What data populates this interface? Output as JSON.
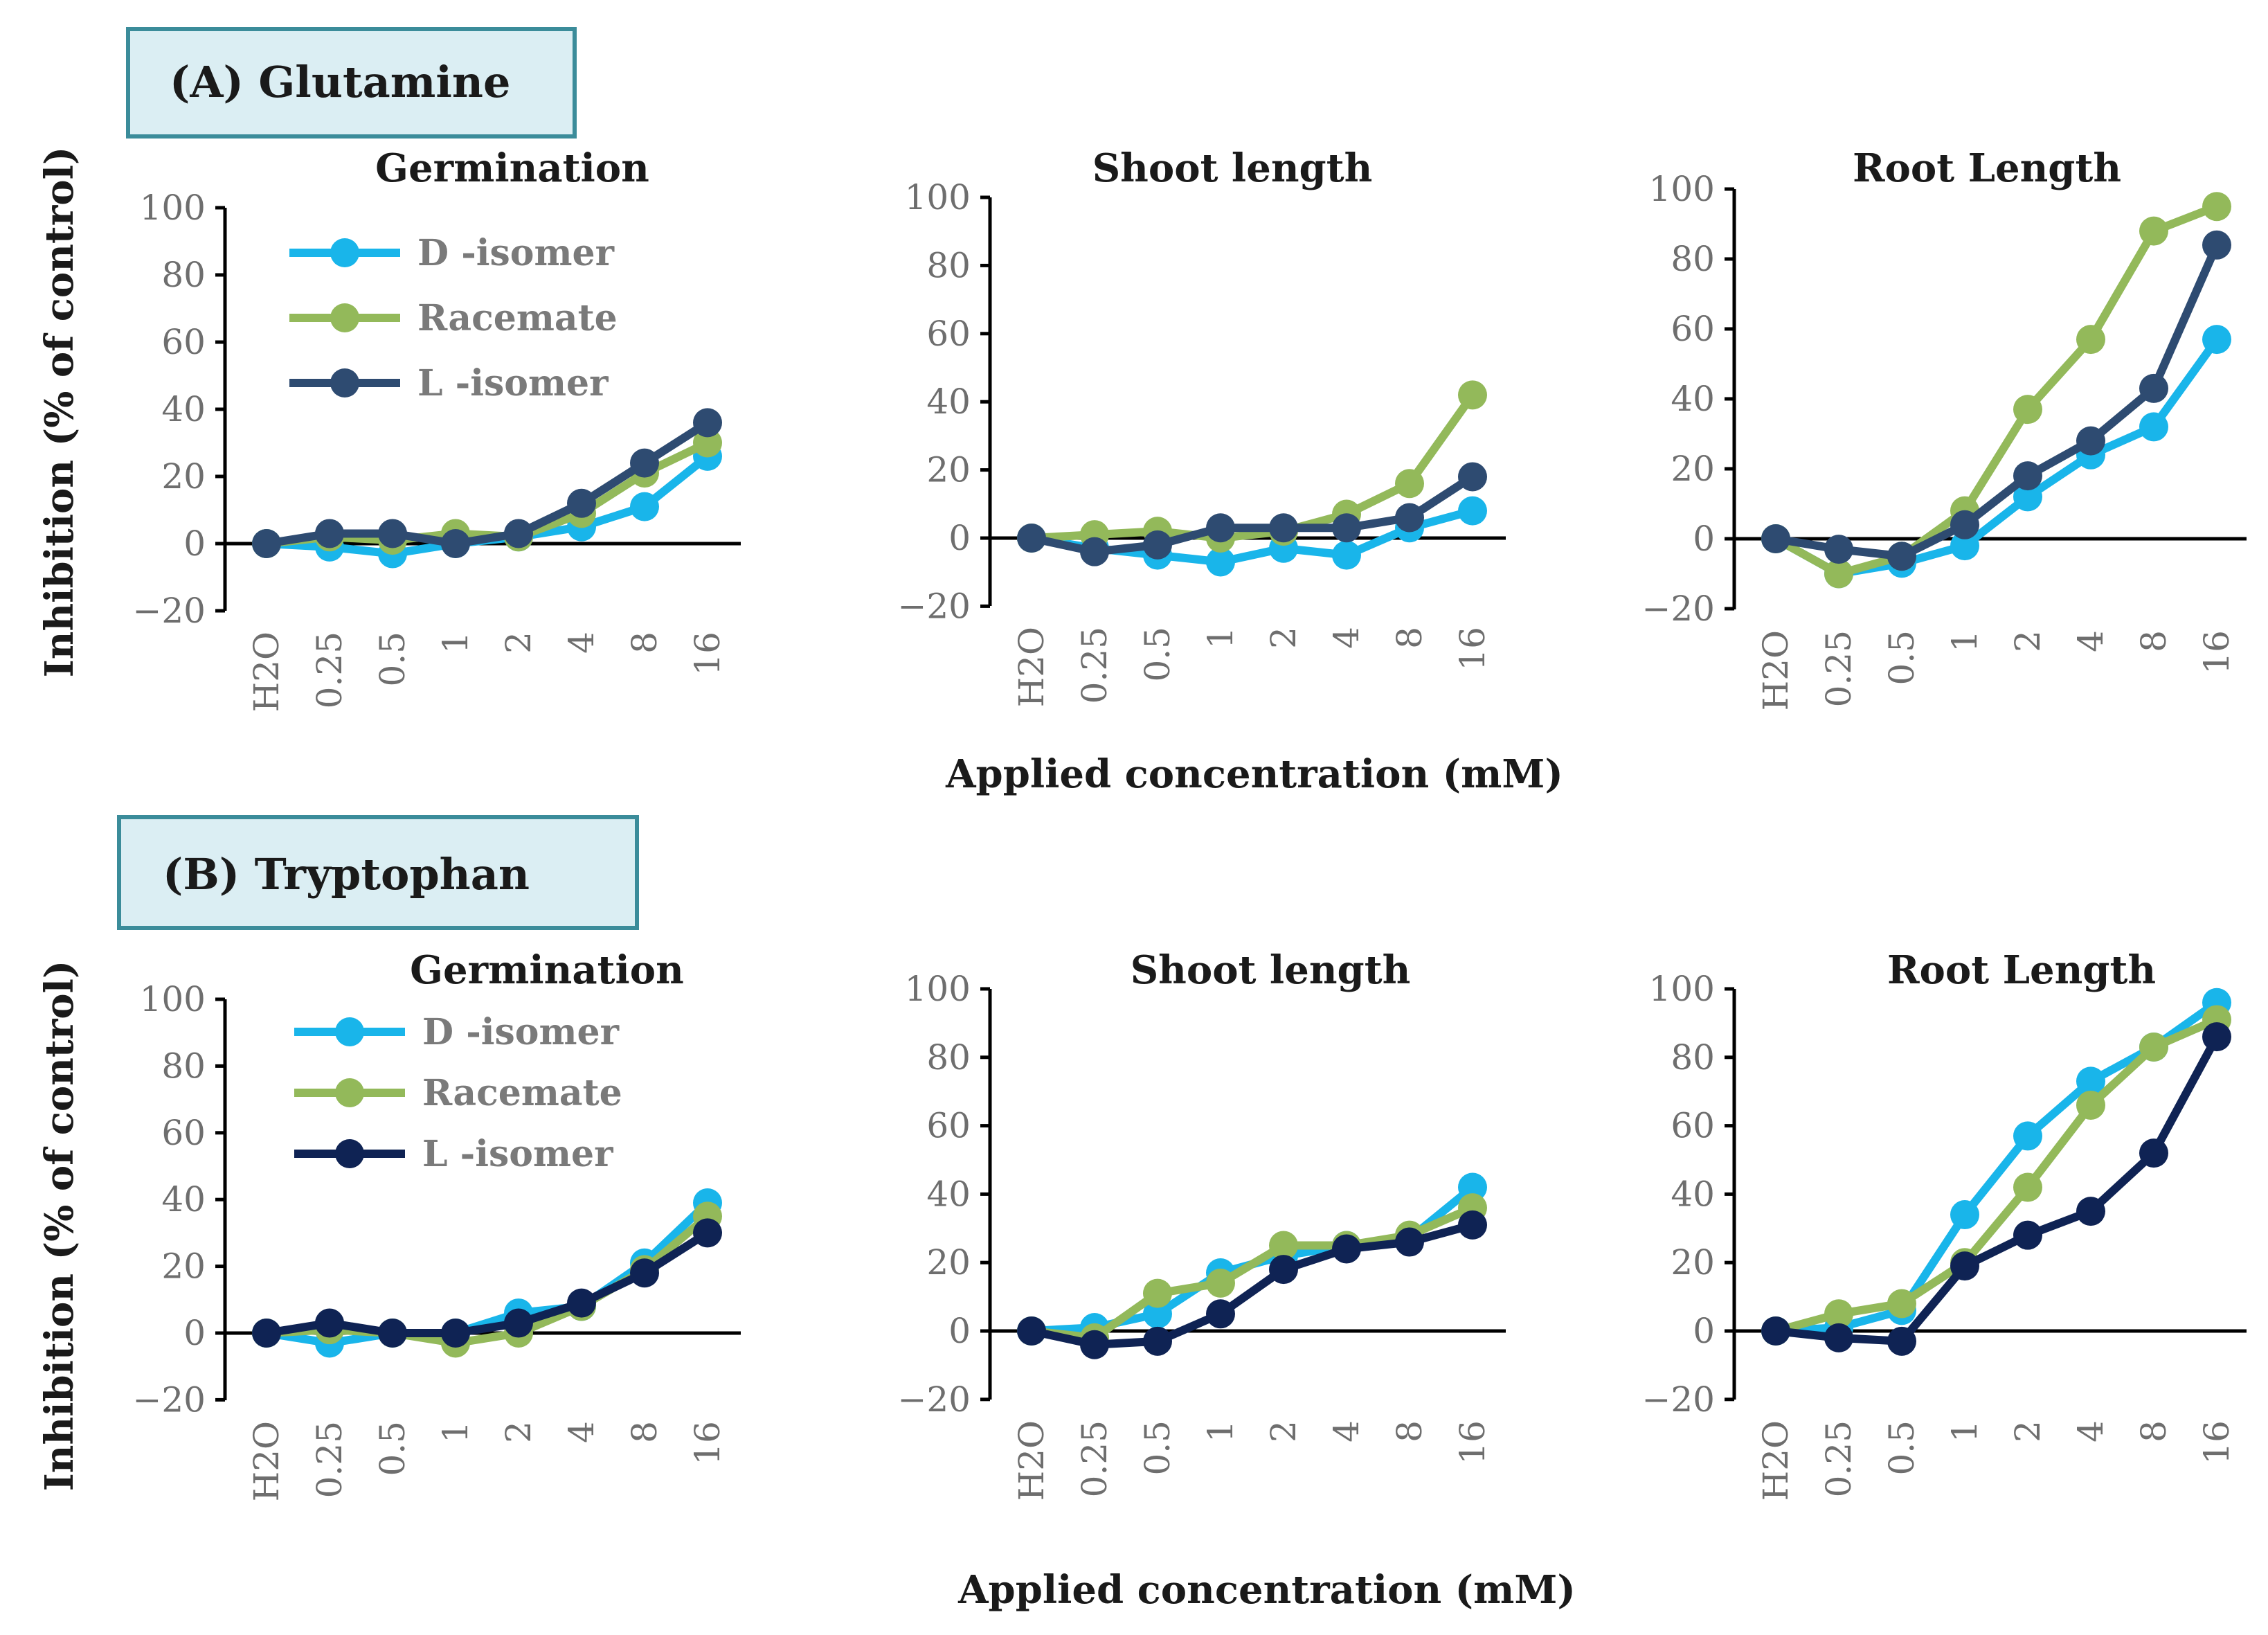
{
  "figure": {
    "panel_a_label": "(A) Glutamine",
    "panel_b_label": "(B) Tryptophan",
    "ylabel": "Inhibition (% of control)",
    "xlabel": "Applied concentration (mM)"
  },
  "colors": {
    "d_isomer": "#19b5ea",
    "racemate": "#93b95a",
    "l_isomer_a": "#2e4b71",
    "l_isomer_b": "#0f2354",
    "box_fill": "#dbeef3",
    "box_stroke": "#3b8c9a"
  },
  "chart_data": [
    {
      "type": "line",
      "panel": "A",
      "title": "Germination",
      "categories": [
        "H2O",
        "0.25",
        "0.5",
        "1",
        "2",
        "4",
        "8",
        "16"
      ],
      "yticks": [
        "100",
        "80",
        "60",
        "40",
        "20",
        "0",
        "−20"
      ],
      "ylim": [
        -20,
        100
      ],
      "legend": "top-left",
      "legend_labels": [
        "D -isomer",
        "Racemate",
        "L -isomer"
      ],
      "series": [
        {
          "name": "D -isomer",
          "color_key": "d_isomer",
          "values": [
            0,
            -1,
            -3,
            0,
            2,
            5,
            11,
            26
          ]
        },
        {
          "name": "Racemate",
          "color_key": "racemate",
          "values": [
            0,
            2,
            1,
            3,
            2,
            9,
            21,
            30
          ]
        },
        {
          "name": "L -isomer",
          "color_key": "l_isomer_a",
          "values": [
            0,
            3,
            3,
            0,
            3,
            12,
            24,
            36
          ]
        }
      ]
    },
    {
      "type": "line",
      "panel": "A",
      "title": "Shoot length",
      "categories": [
        "H2O",
        "0.25",
        "0.5",
        "1",
        "2",
        "4",
        "8",
        "16"
      ],
      "yticks": [
        "100",
        "80",
        "60",
        "40",
        "20",
        "0",
        "−20"
      ],
      "ylim": [
        -20,
        100
      ],
      "series": [
        {
          "name": "D -isomer",
          "color_key": "d_isomer",
          "values": [
            0,
            -3,
            -5,
            -7,
            -3,
            -5,
            3,
            8
          ]
        },
        {
          "name": "Racemate",
          "color_key": "racemate",
          "values": [
            0,
            1,
            2,
            0,
            2,
            7,
            16,
            42
          ]
        },
        {
          "name": "L -isomer",
          "color_key": "l_isomer_a",
          "values": [
            0,
            -4,
            -2,
            3,
            3,
            3,
            6,
            18
          ]
        }
      ]
    },
    {
      "type": "line",
      "panel": "A",
      "title": "Root Length",
      "categories": [
        "H2O",
        "0.25",
        "0.5",
        "1",
        "2",
        "4",
        "8",
        "16"
      ],
      "yticks": [
        "100",
        "80",
        "60",
        "40",
        "20",
        "0",
        "−20"
      ],
      "ylim": [
        -20,
        100
      ],
      "series": [
        {
          "name": "D -isomer",
          "color_key": "d_isomer",
          "values": [
            0,
            -10,
            -7,
            -2,
            12,
            24,
            32,
            57
          ]
        },
        {
          "name": "Racemate",
          "color_key": "racemate",
          "values": [
            0,
            -10,
            -5,
            8,
            37,
            57,
            88,
            95
          ]
        },
        {
          "name": "L -isomer",
          "color_key": "l_isomer_a",
          "values": [
            0,
            -3,
            -5,
            4,
            18,
            28,
            43,
            84
          ]
        }
      ]
    },
    {
      "type": "line",
      "panel": "B",
      "title": "Germination",
      "categories": [
        "H2O",
        "0.25",
        "0.5",
        "1",
        "2",
        "4",
        "8",
        "16"
      ],
      "yticks": [
        "100",
        "80",
        "60",
        "40",
        "20",
        "0",
        "−20"
      ],
      "ylim": [
        -20,
        100
      ],
      "legend": "top-left",
      "legend_labels": [
        "D -isomer",
        "Racemate",
        "L -isomer"
      ],
      "series": [
        {
          "name": "D -isomer",
          "color_key": "d_isomer",
          "values": [
            0,
            -3,
            0,
            0,
            6,
            8,
            21,
            39
          ]
        },
        {
          "name": "Racemate",
          "color_key": "racemate",
          "values": [
            0,
            1,
            0,
            -3,
            0,
            8,
            19,
            35
          ]
        },
        {
          "name": "L -isomer",
          "color_key": "l_isomer_b",
          "values": [
            0,
            3,
            0,
            0,
            3,
            9,
            18,
            30
          ]
        }
      ]
    },
    {
      "type": "line",
      "panel": "B",
      "title": "Shoot length",
      "categories": [
        "H2O",
        "0.25",
        "0.5",
        "1",
        "2",
        "4",
        "8",
        "16"
      ],
      "yticks": [
        "100",
        "80",
        "60",
        "40",
        "20",
        "0",
        "−20"
      ],
      "ylim": [
        -20,
        100
      ],
      "series": [
        {
          "name": "D -isomer",
          "color_key": "d_isomer",
          "values": [
            0,
            1,
            5,
            17,
            22,
            25,
            27,
            42
          ]
        },
        {
          "name": "Racemate",
          "color_key": "racemate",
          "values": [
            0,
            -2,
            11,
            14,
            25,
            25,
            28,
            36
          ]
        },
        {
          "name": "L -isomer",
          "color_key": "l_isomer_b",
          "values": [
            0,
            -4,
            -3,
            5,
            18,
            24,
            26,
            31
          ]
        }
      ]
    },
    {
      "type": "line",
      "panel": "B",
      "title": "Root Length",
      "categories": [
        "H2O",
        "0.25",
        "0.5",
        "1",
        "2",
        "4",
        "8",
        "16"
      ],
      "yticks": [
        "100",
        "80",
        "60",
        "40",
        "20",
        "0",
        "−20"
      ],
      "ylim": [
        -20,
        100
      ],
      "series": [
        {
          "name": "D -isomer",
          "color_key": "d_isomer",
          "values": [
            0,
            1,
            6,
            34,
            57,
            73,
            83,
            96
          ]
        },
        {
          "name": "Racemate",
          "color_key": "racemate",
          "values": [
            0,
            5,
            8,
            20,
            42,
            66,
            83,
            91
          ]
        },
        {
          "name": "L -isomer",
          "color_key": "l_isomer_b",
          "values": [
            0,
            -2,
            -3,
            19,
            28,
            35,
            52,
            86
          ]
        }
      ]
    }
  ]
}
